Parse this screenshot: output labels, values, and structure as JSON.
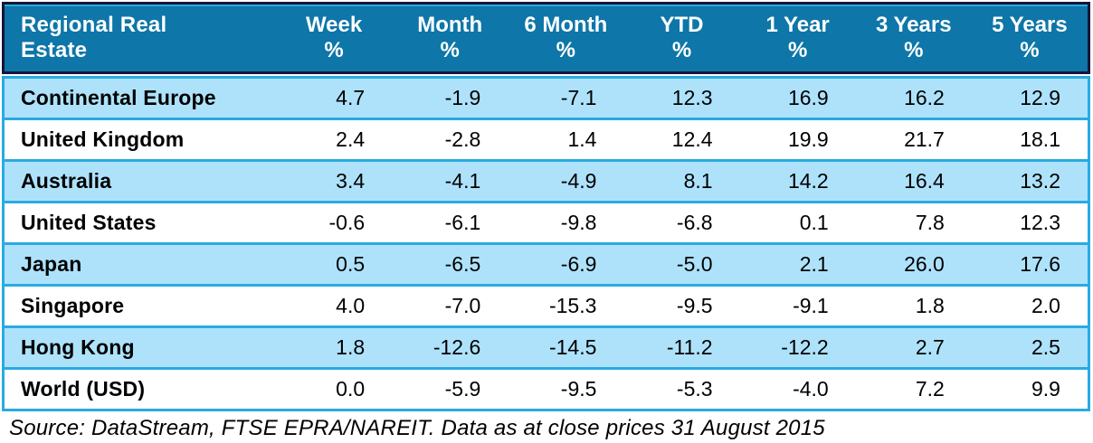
{
  "colors": {
    "header_bg": "#0E76A8",
    "header_text": "#FFFFFF",
    "row_alt_bg": "#AEE2FB",
    "row_bg": "#FFFFFF",
    "accent_border": "#29ABE2",
    "outer_border": "#161638",
    "text": "#000000"
  },
  "table": {
    "corner_label": "Regional Real\nEstate"
  },
  "chart_data": {
    "type": "table",
    "title": "Regional Real Estate",
    "columns": [
      "Week %",
      "Month %",
      "6 Month %",
      "YTD %",
      "1 Year %",
      "3 Years %",
      "5 Years %"
    ],
    "rows": [
      {
        "name": "Continental Europe",
        "values": [
          4.7,
          -1.9,
          -7.1,
          12.3,
          16.9,
          16.2,
          12.9
        ]
      },
      {
        "name": "United Kingdom",
        "values": [
          2.4,
          -2.8,
          1.4,
          12.4,
          19.9,
          21.7,
          18.1
        ]
      },
      {
        "name": "Australia",
        "values": [
          3.4,
          -4.1,
          -4.9,
          8.1,
          14.2,
          16.4,
          13.2
        ]
      },
      {
        "name": "United States",
        "values": [
          -0.6,
          -6.1,
          -9.8,
          -6.8,
          0.1,
          7.8,
          12.3
        ]
      },
      {
        "name": "Japan",
        "values": [
          0.5,
          -6.5,
          -6.9,
          -5.0,
          2.1,
          26.0,
          17.6
        ]
      },
      {
        "name": "Singapore",
        "values": [
          4.0,
          -7.0,
          -15.3,
          -9.5,
          -9.1,
          1.8,
          2.0
        ]
      },
      {
        "name": "Hong Kong",
        "values": [
          1.8,
          -12.6,
          -14.5,
          -11.2,
          -12.2,
          2.7,
          2.5
        ]
      },
      {
        "name": "World (USD)",
        "values": [
          0.0,
          -5.9,
          -9.5,
          -5.3,
          -4.0,
          7.2,
          9.9
        ]
      }
    ],
    "source": "Source: DataStream, FTSE EPRA/NAREIT. Data as at close prices 31 August 2015"
  }
}
